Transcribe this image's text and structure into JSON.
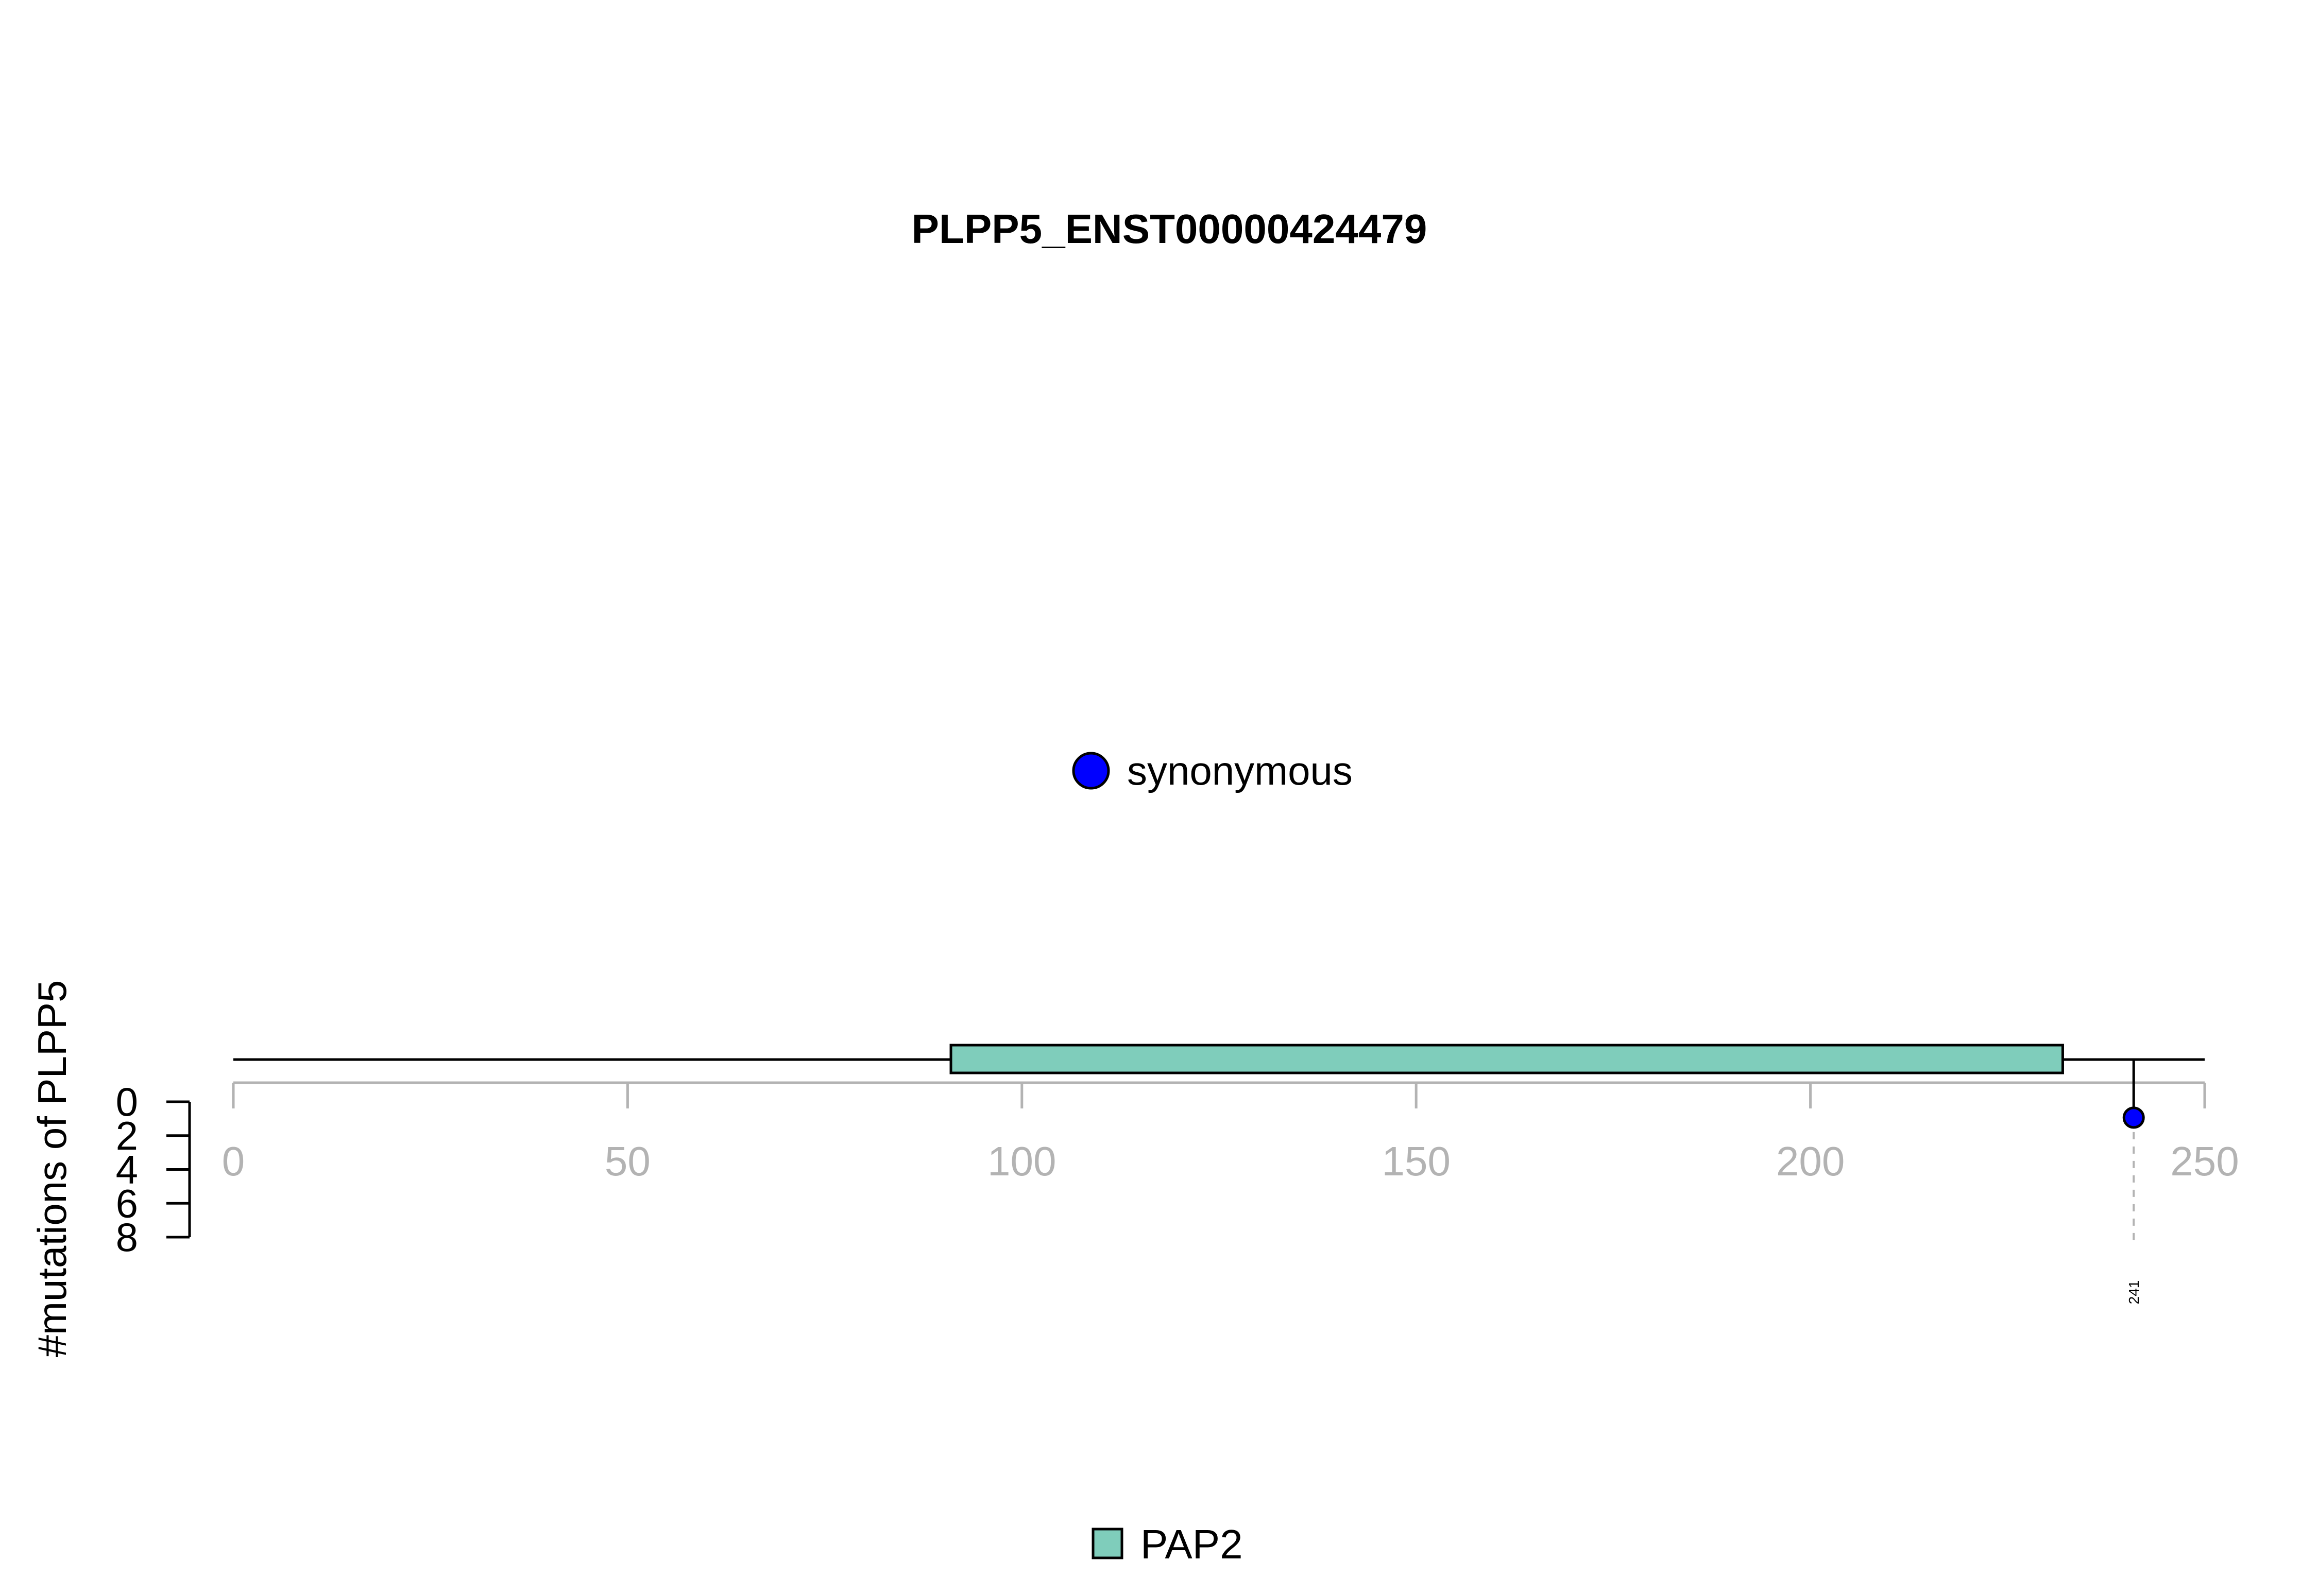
{
  "chart_data": {
    "type": "lollipop",
    "title": "PLPP5_ENST00000424479",
    "ylabel": "#mutations of PLPP5",
    "xlabel": "",
    "xlim": [
      0,
      250
    ],
    "x_ticks": [
      0,
      50,
      100,
      150,
      200,
      250
    ],
    "ylim": [
      0,
      8
    ],
    "y_ticks": [
      0,
      2,
      4,
      6,
      8
    ],
    "protein_length": 250,
    "domains": [
      {
        "name": "PAP2",
        "start": 91,
        "end": 232,
        "color": "#7FCDBB"
      }
    ],
    "mutations": [
      {
        "position": 241,
        "count": 1,
        "type": "synonymous",
        "label": "241",
        "color": "#0000FF"
      }
    ],
    "legend_mutation_types": [
      {
        "label": "synonymous",
        "color": "#0000FF"
      }
    ],
    "legend_domains": [
      {
        "label": "PAP2",
        "color": "#7FCDBB"
      }
    ]
  }
}
